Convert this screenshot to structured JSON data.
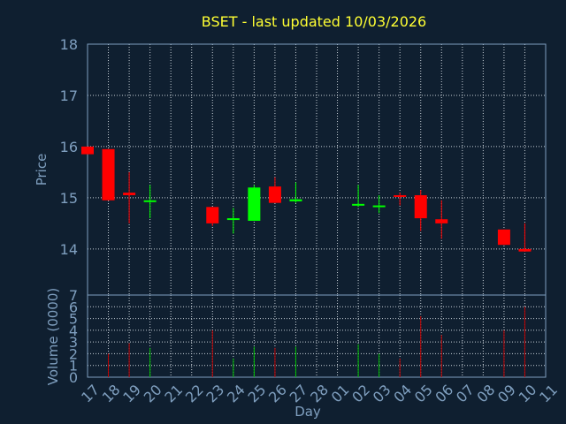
{
  "chart_data": {
    "type": "candlestick",
    "title": "BSET - last updated 10/03/2026",
    "xlabel": "Day",
    "ylabel": "Price",
    "volume_label": "Volume (0000)",
    "ylim": [
      13.1,
      18
    ],
    "volume_ylim": [
      0,
      7
    ],
    "price_ticks": [
      "14",
      "15",
      "16",
      "17",
      "18"
    ],
    "volume_ticks": [
      "0",
      "1",
      "2",
      "3",
      "4",
      "5",
      "6",
      "7"
    ],
    "x_ticks": [
      "17",
      "18",
      "19",
      "20",
      "21",
      "22",
      "23",
      "24",
      "25",
      "26",
      "27",
      "28",
      "01",
      "02",
      "03",
      "04",
      "05",
      "06",
      "07",
      "08",
      "09",
      "10",
      "11"
    ],
    "grid": true,
    "colors": {
      "background": "#0f1f30",
      "axis": "#7f9fbf",
      "grid": "#c8d0d8",
      "title": "#ffff33",
      "up": "#00ff00",
      "down": "#ff0000",
      "volume_up": "#00c000",
      "volume_down": "#c00000"
    },
    "candles": [
      {
        "day": "17",
        "open": 16.0,
        "high": 16.0,
        "low": 15.85,
        "close": 15.85,
        "volume": 0
      },
      {
        "day": "18",
        "open": 15.95,
        "high": 15.95,
        "low": 14.95,
        "close": 14.95,
        "volume": 2.0
      },
      {
        "day": "19",
        "open": 15.1,
        "high": 15.5,
        "low": 14.5,
        "close": 15.05,
        "volume": 2.9
      },
      {
        "day": "20",
        "open": 14.92,
        "high": 15.25,
        "low": 14.6,
        "close": 14.95,
        "volume": 2.5
      },
      {
        "day": "23",
        "open": 14.82,
        "high": 14.82,
        "low": 14.45,
        "close": 14.5,
        "volume": 4.0
      },
      {
        "day": "24",
        "open": 14.57,
        "high": 14.8,
        "low": 14.3,
        "close": 14.6,
        "volume": 1.6
      },
      {
        "day": "25",
        "open": 14.55,
        "high": 15.25,
        "low": 14.55,
        "close": 15.2,
        "volume": 2.6
      },
      {
        "day": "26",
        "open": 15.22,
        "high": 15.4,
        "low": 14.9,
        "close": 14.9,
        "volume": 2.5
      },
      {
        "day": "27",
        "open": 14.93,
        "high": 15.3,
        "low": 14.9,
        "close": 14.97,
        "volume": 2.6
      },
      {
        "day": "02",
        "open": 14.85,
        "high": 15.25,
        "low": 14.82,
        "close": 14.88,
        "volume": 2.8
      },
      {
        "day": "03",
        "open": 14.82,
        "high": 15.05,
        "low": 14.7,
        "close": 14.85,
        "volume": 2.0
      },
      {
        "day": "04",
        "open": 15.05,
        "high": 15.1,
        "low": 14.85,
        "close": 15.02,
        "volume": 1.6
      },
      {
        "day": "05",
        "open": 15.05,
        "high": 15.15,
        "low": 14.35,
        "close": 14.6,
        "volume": 5.2
      },
      {
        "day": "06",
        "open": 14.58,
        "high": 14.95,
        "low": 14.2,
        "close": 14.5,
        "volume": 3.6
      },
      {
        "day": "09",
        "open": 14.38,
        "high": 14.38,
        "low": 14.08,
        "close": 14.08,
        "volume": 4.0
      },
      {
        "day": "10",
        "open": 14.0,
        "high": 14.5,
        "low": 13.95,
        "close": 13.95,
        "volume": 6.0
      }
    ]
  }
}
